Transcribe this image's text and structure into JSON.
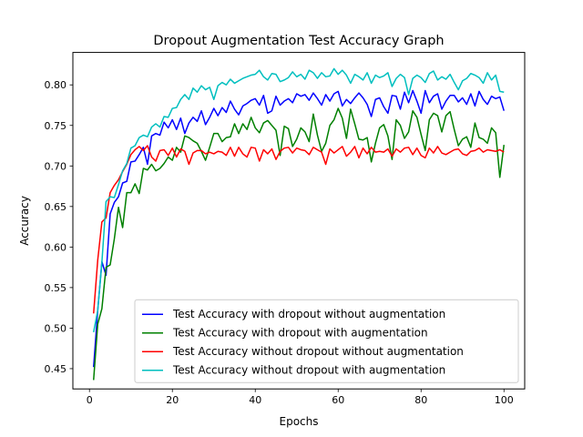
{
  "chart_data": {
    "type": "line",
    "title": "Dropout Augmentation Test Accuracy Graph",
    "xlabel": "Epochs",
    "ylabel": "Accuracy",
    "xlim": [
      -4,
      105
    ],
    "ylim": [
      0.425,
      0.84
    ],
    "xticks": [
      0,
      20,
      40,
      60,
      80,
      100
    ],
    "yticks": [
      0.45,
      0.5,
      0.55,
      0.6,
      0.65,
      0.7,
      0.75,
      0.8
    ],
    "ytick_labels": [
      "0.45",
      "0.50",
      "0.55",
      "0.60",
      "0.65",
      "0.70",
      "0.75",
      "0.80"
    ],
    "grid": false,
    "legend_position": "lower right",
    "series": [
      {
        "name": "Test Accuracy with dropout without augmentation",
        "color": "#0000ff",
        "values": [
          0.452,
          0.522,
          0.582,
          0.565,
          0.641,
          0.655,
          0.662,
          0.679,
          0.681,
          0.705,
          0.706,
          0.714,
          0.723,
          0.702,
          0.737,
          0.74,
          0.738,
          0.754,
          0.747,
          0.757,
          0.745,
          0.759,
          0.74,
          0.753,
          0.76,
          0.755,
          0.768,
          0.751,
          0.76,
          0.771,
          0.762,
          0.772,
          0.766,
          0.78,
          0.77,
          0.763,
          0.774,
          0.777,
          0.781,
          0.783,
          0.775,
          0.787,
          0.765,
          0.768,
          0.786,
          0.775,
          0.78,
          0.783,
          0.778,
          0.789,
          0.786,
          0.788,
          0.781,
          0.79,
          0.783,
          0.775,
          0.788,
          0.78,
          0.789,
          0.792,
          0.774,
          0.782,
          0.777,
          0.784,
          0.79,
          0.784,
          0.776,
          0.761,
          0.782,
          0.784,
          0.773,
          0.765,
          0.787,
          0.786,
          0.77,
          0.791,
          0.778,
          0.793,
          0.78,
          0.765,
          0.793,
          0.778,
          0.786,
          0.789,
          0.77,
          0.78,
          0.787,
          0.787,
          0.779,
          0.784,
          0.776,
          0.789,
          0.774,
          0.792,
          0.782,
          0.776,
          0.786,
          0.783,
          0.785,
          0.768
        ]
      },
      {
        "name": "Test Accuracy with dropout with augmentation",
        "color": "#008000",
        "values": [
          0.436,
          0.505,
          0.524,
          0.575,
          0.578,
          0.61,
          0.649,
          0.624,
          0.667,
          0.667,
          0.678,
          0.666,
          0.697,
          0.695,
          0.702,
          0.694,
          0.697,
          0.703,
          0.711,
          0.707,
          0.723,
          0.717,
          0.737,
          0.735,
          0.731,
          0.728,
          0.718,
          0.707,
          0.723,
          0.74,
          0.74,
          0.73,
          0.735,
          0.736,
          0.752,
          0.74,
          0.752,
          0.745,
          0.76,
          0.747,
          0.741,
          0.753,
          0.756,
          0.75,
          0.744,
          0.713,
          0.749,
          0.746,
          0.724,
          0.733,
          0.747,
          0.742,
          0.73,
          0.764,
          0.738,
          0.718,
          0.728,
          0.75,
          0.757,
          0.771,
          0.759,
          0.734,
          0.77,
          0.752,
          0.733,
          0.732,
          0.735,
          0.705,
          0.728,
          0.747,
          0.751,
          0.737,
          0.708,
          0.757,
          0.75,
          0.734,
          0.742,
          0.768,
          0.76,
          0.739,
          0.719,
          0.757,
          0.765,
          0.762,
          0.742,
          0.762,
          0.767,
          0.745,
          0.725,
          0.733,
          0.736,
          0.723,
          0.753,
          0.735,
          0.733,
          0.728,
          0.747,
          0.741,
          0.686,
          0.726
        ]
      },
      {
        "name": "Test Accuracy without dropout without augmentation",
        "color": "#ff0000",
        "values": [
          0.518,
          0.584,
          0.631,
          0.636,
          0.667,
          0.676,
          0.683,
          0.693,
          0.702,
          0.714,
          0.72,
          0.724,
          0.719,
          0.725,
          0.711,
          0.706,
          0.719,
          0.72,
          0.713,
          0.722,
          0.711,
          0.721,
          0.718,
          0.702,
          0.716,
          0.719,
          0.719,
          0.715,
          0.717,
          0.715,
          0.718,
          0.717,
          0.713,
          0.723,
          0.712,
          0.723,
          0.715,
          0.711,
          0.723,
          0.722,
          0.706,
          0.72,
          0.715,
          0.721,
          0.708,
          0.718,
          0.722,
          0.723,
          0.716,
          0.722,
          0.72,
          0.719,
          0.714,
          0.723,
          0.72,
          0.717,
          0.702,
          0.721,
          0.716,
          0.72,
          0.724,
          0.712,
          0.717,
          0.724,
          0.71,
          0.722,
          0.715,
          0.723,
          0.717,
          0.718,
          0.717,
          0.721,
          0.712,
          0.721,
          0.717,
          0.722,
          0.723,
          0.714,
          0.722,
          0.713,
          0.71,
          0.722,
          0.716,
          0.724,
          0.716,
          0.714,
          0.717,
          0.72,
          0.721,
          0.715,
          0.713,
          0.718,
          0.719,
          0.722,
          0.717,
          0.72,
          0.719,
          0.718,
          0.72,
          0.717
        ]
      },
      {
        "name": "Test Accuracy without dropout with augmentation",
        "color": "#00bfbf",
        "values": [
          0.495,
          0.522,
          0.581,
          0.656,
          0.662,
          0.661,
          0.677,
          0.694,
          0.703,
          0.722,
          0.725,
          0.735,
          0.738,
          0.736,
          0.748,
          0.752,
          0.748,
          0.761,
          0.76,
          0.771,
          0.772,
          0.782,
          0.788,
          0.782,
          0.796,
          0.791,
          0.799,
          0.794,
          0.797,
          0.782,
          0.799,
          0.803,
          0.8,
          0.807,
          0.802,
          0.805,
          0.808,
          0.81,
          0.812,
          0.813,
          0.818,
          0.81,
          0.806,
          0.814,
          0.813,
          0.804,
          0.806,
          0.809,
          0.816,
          0.81,
          0.813,
          0.807,
          0.818,
          0.815,
          0.808,
          0.815,
          0.81,
          0.811,
          0.82,
          0.813,
          0.818,
          0.812,
          0.802,
          0.813,
          0.81,
          0.806,
          0.815,
          0.802,
          0.812,
          0.809,
          0.811,
          0.815,
          0.798,
          0.808,
          0.813,
          0.809,
          0.788,
          0.808,
          0.812,
          0.809,
          0.803,
          0.814,
          0.817,
          0.806,
          0.81,
          0.807,
          0.813,
          0.803,
          0.794,
          0.805,
          0.808,
          0.814,
          0.812,
          0.809,
          0.802,
          0.815,
          0.806,
          0.812,
          0.792,
          0.791
        ]
      }
    ]
  }
}
